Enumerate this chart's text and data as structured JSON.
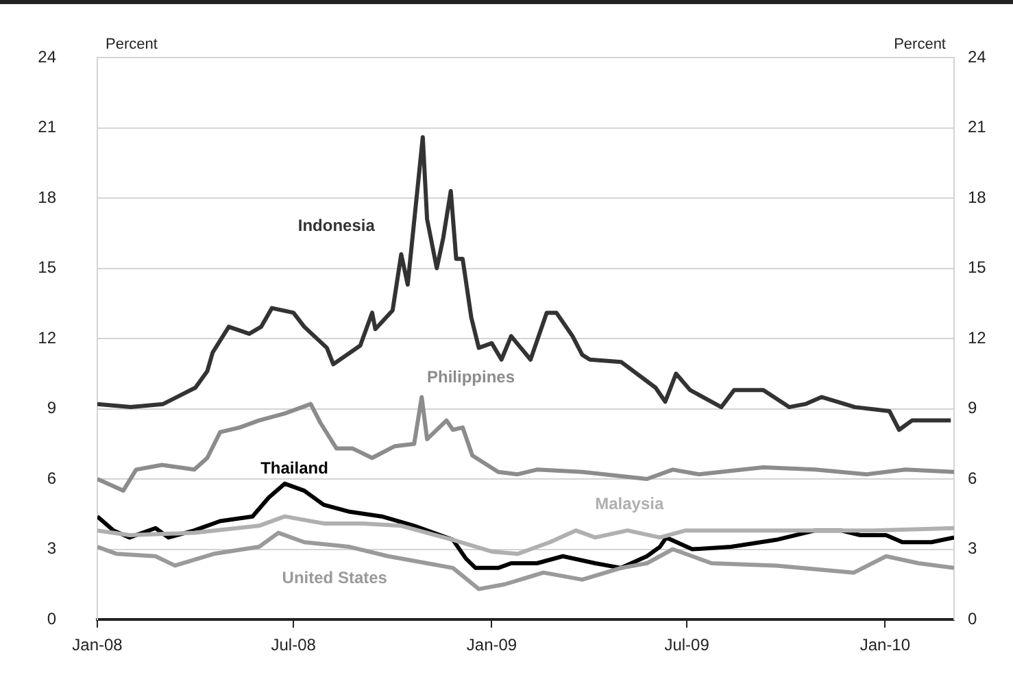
{
  "chart_data": {
    "type": "line",
    "ylabel": "Percent",
    "y2label": "Percent",
    "xlim": [
      "2008-01-01",
      "2010-03-06"
    ],
    "xticks": [
      {
        "value": "2008-01-01",
        "label": "Jan-08"
      },
      {
        "value": "2008-07-01",
        "label": "Jul-08"
      },
      {
        "value": "2009-01-01",
        "label": "Jan-09"
      },
      {
        "value": "2009-07-01",
        "label": "Jul-09"
      },
      {
        "value": "2010-01-01",
        "label": "Jan-10"
      }
    ],
    "ylim": [
      0,
      24
    ],
    "yticks": [
      0,
      3,
      6,
      9,
      12,
      15,
      18,
      21,
      24
    ],
    "y2lim": [
      0,
      24
    ],
    "y2ticks": [
      0,
      3,
      6,
      9,
      12,
      15,
      18,
      21,
      24
    ],
    "grid": "y",
    "legend": false,
    "marker": "none",
    "line_style": "solid",
    "series": [
      {
        "name": "Indonesia",
        "color": "#333333",
        "x": [
          "2008-01-01",
          "2008-02-01",
          "2008-03-02",
          "2008-04-01",
          "2008-04-12",
          "2008-04-17",
          "2008-05-02",
          "2008-05-21",
          "2008-06-01",
          "2008-06-11",
          "2008-07-01",
          "2008-07-11",
          "2008-08-01",
          "2008-08-07",
          "2008-09-01",
          "2008-09-12",
          "2008-09-15",
          "2008-10-01",
          "2008-10-09",
          "2008-10-15",
          "2008-10-29",
          "2008-11-02",
          "2008-11-11",
          "2008-11-17",
          "2008-11-24",
          "2008-11-29",
          "2008-12-05",
          "2008-12-13",
          "2008-12-20",
          "2009-01-01",
          "2009-01-10",
          "2009-01-19",
          "2009-02-06",
          "2009-02-21",
          "2009-03-02",
          "2009-03-17",
          "2009-03-26",
          "2009-04-02",
          "2009-05-01",
          "2009-06-02",
          "2009-06-11",
          "2009-06-21",
          "2009-07-04",
          "2009-08-02",
          "2009-08-14",
          "2009-09-10",
          "2009-10-04",
          "2009-10-19",
          "2009-11-03",
          "2009-12-04",
          "2010-01-05",
          "2010-01-14",
          "2010-01-26",
          "2010-03-03"
        ],
        "values": [
          9.2,
          9.07,
          9.2,
          9.9,
          10.6,
          11.4,
          12.5,
          12.2,
          12.5,
          13.3,
          13.1,
          12.5,
          11.6,
          10.9,
          11.7,
          13.1,
          12.4,
          13.2,
          15.6,
          14.3,
          20.6,
          17.1,
          15.0,
          16.3,
          18.3,
          15.4,
          15.4,
          12.9,
          11.6,
          11.8,
          11.1,
          12.1,
          11.1,
          13.1,
          13.1,
          12.1,
          11.3,
          11.1,
          11.0,
          9.9,
          9.3,
          10.5,
          9.8,
          9.07,
          9.8,
          9.8,
          9.07,
          9.2,
          9.5,
          9.07,
          8.9,
          8.1,
          8.5,
          8.5
        ]
      },
      {
        "name": "Philippines",
        "color": "#8c8c8c",
        "x": [
          "2008-01-01",
          "2008-01-25",
          "2008-02-06",
          "2008-03-01",
          "2008-03-31",
          "2008-04-12",
          "2008-04-24",
          "2008-05-12",
          "2008-05-30",
          "2008-06-23",
          "2008-07-17",
          "2008-07-26",
          "2008-08-10",
          "2008-08-25",
          "2008-09-12",
          "2008-10-03",
          "2008-10-21",
          "2008-10-28",
          "2008-11-02",
          "2008-11-20",
          "2008-11-26",
          "2008-12-05",
          "2008-12-14",
          "2009-01-07",
          "2009-01-25",
          "2009-02-12",
          "2009-03-26",
          "2009-05-25",
          "2009-06-18",
          "2009-07-12",
          "2009-09-10",
          "2009-10-28",
          "2009-12-15",
          "2010-01-20",
          "2010-03-06"
        ],
        "values": [
          6.0,
          5.5,
          6.4,
          6.6,
          6.4,
          6.9,
          8.0,
          8.2,
          8.5,
          8.8,
          9.2,
          8.4,
          7.3,
          7.3,
          6.9,
          7.4,
          7.5,
          9.5,
          7.7,
          8.5,
          8.1,
          8.2,
          7.0,
          6.3,
          6.2,
          6.4,
          6.3,
          6.0,
          6.4,
          6.2,
          6.5,
          6.4,
          6.2,
          6.4,
          6.3
        ]
      },
      {
        "name": "Malaysia",
        "color": "#b0b0b0",
        "x": [
          "2008-01-01",
          "2008-01-31",
          "2008-03-31",
          "2008-05-30",
          "2008-06-23",
          "2008-07-29",
          "2008-09-03",
          "2008-10-09",
          "2008-11-26",
          "2009-01-01",
          "2009-01-25",
          "2009-02-24",
          "2009-03-20",
          "2009-04-07",
          "2009-05-07",
          "2009-06-06",
          "2009-06-30",
          "2009-09-22",
          "2009-12-21",
          "2010-03-06"
        ],
        "values": [
          3.8,
          3.6,
          3.7,
          4.0,
          4.4,
          4.1,
          4.1,
          4.0,
          3.4,
          2.9,
          2.8,
          3.3,
          3.8,
          3.5,
          3.8,
          3.5,
          3.8,
          3.8,
          3.8,
          3.9
        ]
      },
      {
        "name": "United States",
        "color": "#9a9a9a",
        "x": [
          "2008-01-01",
          "2008-01-19",
          "2008-02-24",
          "2008-03-13",
          "2008-04-18",
          "2008-05-30",
          "2008-06-17",
          "2008-07-11",
          "2008-08-22",
          "2008-09-27",
          "2008-11-02",
          "2008-11-26",
          "2008-12-20",
          "2009-01-13",
          "2009-02-18",
          "2009-03-26",
          "2009-05-01",
          "2009-05-25",
          "2009-06-18",
          "2009-07-24",
          "2009-09-22",
          "2009-12-03",
          "2010-01-02",
          "2010-02-01",
          "2010-03-06"
        ],
        "values": [
          3.1,
          2.8,
          2.7,
          2.3,
          2.8,
          3.1,
          3.7,
          3.3,
          3.1,
          2.7,
          2.4,
          2.2,
          1.3,
          1.5,
          2.0,
          1.7,
          2.2,
          2.4,
          3.0,
          2.4,
          2.3,
          2.0,
          2.7,
          2.4,
          2.2
        ]
      },
      {
        "name": "Thailand",
        "color": "#000000",
        "x": [
          "2008-01-01",
          "2008-01-16",
          "2008-01-31",
          "2008-02-24",
          "2008-03-07",
          "2008-03-31",
          "2008-04-24",
          "2008-05-24",
          "2008-06-08",
          "2008-06-23",
          "2008-07-11",
          "2008-07-29",
          "2008-08-22",
          "2008-09-21",
          "2008-10-21",
          "2008-11-26",
          "2008-12-08",
          "2008-12-17",
          "2009-01-07",
          "2009-01-19",
          "2009-02-12",
          "2009-03-08",
          "2009-04-07",
          "2009-05-01",
          "2009-05-25",
          "2009-06-06",
          "2009-06-12",
          "2009-07-06",
          "2009-08-11",
          "2009-09-22",
          "2009-10-28",
          "2009-11-21",
          "2009-12-09",
          "2010-01-02",
          "2010-01-17",
          "2010-02-13",
          "2010-03-06"
        ],
        "values": [
          4.4,
          3.8,
          3.5,
          3.9,
          3.5,
          3.8,
          4.2,
          4.4,
          5.2,
          5.8,
          5.5,
          4.9,
          4.6,
          4.4,
          4.0,
          3.4,
          2.6,
          2.2,
          2.2,
          2.4,
          2.4,
          2.7,
          2.4,
          2.2,
          2.7,
          3.1,
          3.5,
          3.0,
          3.1,
          3.4,
          3.8,
          3.8,
          3.6,
          3.6,
          3.3,
          3.3,
          3.5
        ]
      }
    ]
  }
}
